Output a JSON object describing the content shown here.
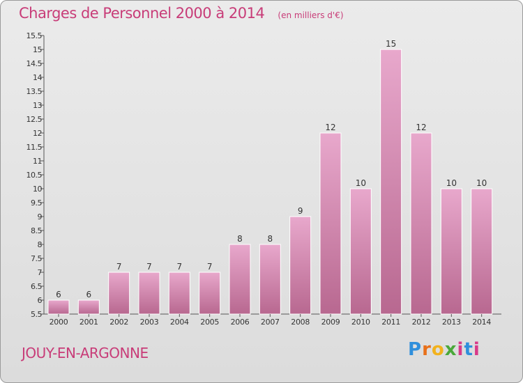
{
  "header": {
    "title": "Charges de Personnel 2000 à 2014",
    "subtitle": "(en milliers d'€)"
  },
  "footer": {
    "commune": "JOUY-EN-ARGONNE",
    "logo": "Proxiti"
  },
  "colors": {
    "accent": "#c83c78",
    "bar_light": "#e8a8cc",
    "bar_dark": "#b86890"
  },
  "chart_data": {
    "type": "bar",
    "categories": [
      "2000",
      "2001",
      "2002",
      "2003",
      "2004",
      "2005",
      "2006",
      "2007",
      "2008",
      "2009",
      "2010",
      "2011",
      "2012",
      "2013",
      "2014"
    ],
    "values": [
      6,
      6,
      7,
      7,
      7,
      7,
      8,
      8,
      9,
      12,
      10,
      15,
      12,
      10,
      10
    ],
    "data_labels": [
      "6",
      "6",
      "7",
      "7",
      "7",
      "7",
      "8",
      "8",
      "9",
      "12",
      "10",
      "15",
      "12",
      "10",
      "10"
    ],
    "yticks": [
      "5.5",
      "6",
      "6.5",
      "7",
      "7.5",
      "8",
      "8.5",
      "9",
      "9.5",
      "10",
      "10.5",
      "11",
      "11.5",
      "12",
      "12.5",
      "13",
      "13.5",
      "14",
      "14.5",
      "15",
      "15.5"
    ],
    "ylim": [
      5.5,
      15.5
    ],
    "grid": false,
    "title": "Charges de Personnel 2000 à 2014",
    "xlabel": "",
    "ylabel": ""
  }
}
